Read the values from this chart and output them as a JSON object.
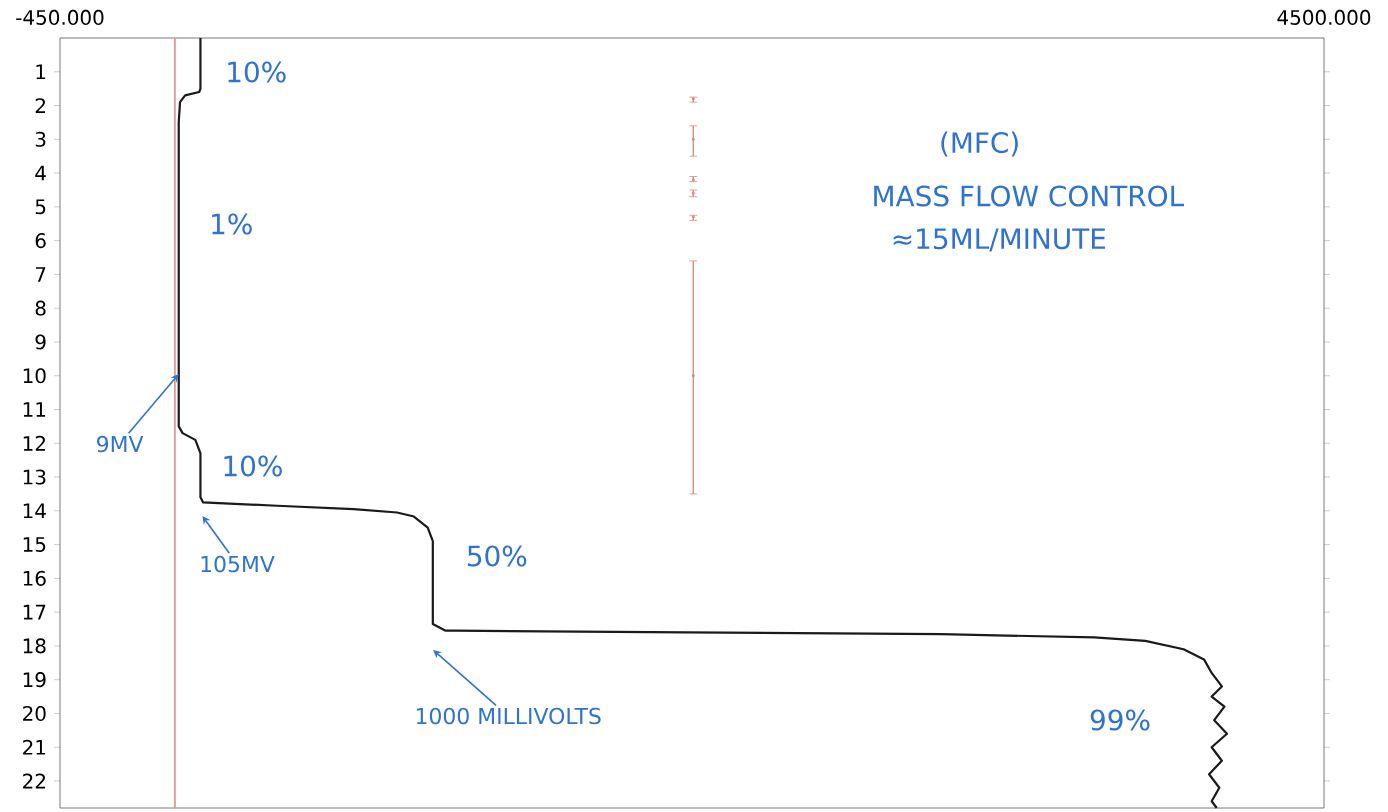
{
  "chart_data": {
    "type": "line",
    "xlim": [
      -450,
      4500
    ],
    "ylim": [
      22.8,
      0
    ],
    "xticks": [
      {
        "value": -450,
        "label": "-450.000"
      },
      {
        "value": 4500,
        "label": "4500.000"
      }
    ],
    "yticks": [
      1,
      2,
      3,
      4,
      5,
      6,
      7,
      8,
      9,
      10,
      11,
      12,
      13,
      14,
      15,
      16,
      17,
      18,
      19,
      20,
      21,
      22
    ],
    "grid": false,
    "marker": "none",
    "line_style": "solid",
    "series": [
      {
        "color": "#1a1a1a",
        "x": [
          100,
          100,
          95,
          40,
          20,
          15,
          15,
          30,
          80,
          100,
          100,
          110,
          400,
          700,
          870,
          936,
          990,
          1010,
          1010,
          1060,
          1100,
          2000,
          3000,
          3600,
          3800,
          3950,
          4030,
          4060,
          4100,
          4060,
          4110,
          4070,
          4120,
          4060,
          4100,
          4050,
          4090,
          4060,
          4080
        ],
        "values": [
          0,
          1.5,
          1.6,
          1.7,
          1.9,
          2.5,
          11.5,
          11.7,
          11.9,
          12.3,
          13.6,
          13.75,
          13.85,
          13.95,
          14.05,
          14.17,
          14.5,
          14.9,
          17.35,
          17.55,
          17.55,
          17.6,
          17.65,
          17.75,
          17.85,
          18.1,
          18.4,
          18.8,
          19.2,
          19.5,
          19.8,
          20.2,
          20.6,
          21,
          21.4,
          21.8,
          22.2,
          22.6,
          22.8
        ]
      },
      {
        "type": "scatter",
        "marker": "square",
        "color": "#d98a86",
        "x": [
          2030,
          2030,
          2030,
          2030,
          2030,
          2030
        ],
        "values": [
          1.8,
          3.0,
          4.2,
          4.6,
          5.3,
          10.0
        ],
        "errors": [
          [
            1.75,
            1.9
          ],
          [
            2.6,
            3.5
          ],
          [
            4.1,
            4.25
          ],
          [
            4.5,
            4.7
          ],
          [
            5.25,
            5.4
          ],
          [
            6.6,
            13.5
          ]
        ]
      }
    ],
    "ref_lines": [
      {
        "axis": "x",
        "value": 0,
        "color": "#e08a8a"
      }
    ],
    "annotations": [
      "10%",
      "1%",
      "10%",
      "50%",
      {
        "text": "9MV",
        "x": 15,
        "y": 9.95
      },
      "105MV",
      "1000 MILLIVOLTS",
      "99%",
      "(MFC)",
      "MASS FLOW CONTROL",
      "≈15ML/MINUTE"
    ]
  }
}
